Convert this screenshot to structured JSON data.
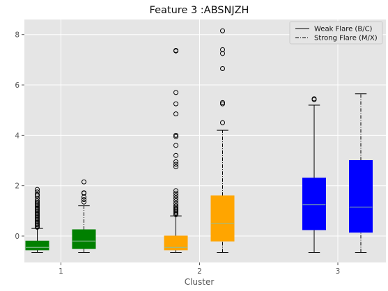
{
  "chart_data": {
    "type": "box",
    "title": "Feature 3 :ABSNJZH",
    "xlabel": "Cluster",
    "ylabel": "",
    "categories": [
      "1",
      "2",
      "3"
    ],
    "yticks": [
      0,
      2,
      4,
      6,
      8
    ],
    "ylim": [
      -1.05,
      8.6
    ],
    "grid": true,
    "legend_position": "top-right",
    "series": [
      {
        "name": "Weak Flare (B/C)",
        "line_style": "solid",
        "boxes": [
          {
            "cluster": "1",
            "color": "#008000",
            "whisker_low": -0.65,
            "q1": -0.55,
            "median": -0.45,
            "q3": -0.2,
            "whisker_high": 0.3,
            "outliers": [
              0.35,
              0.4,
              0.45,
              0.5,
              0.55,
              0.6,
              0.65,
              0.7,
              0.75,
              0.8,
              0.85,
              0.9,
              0.95,
              1.0,
              1.05,
              1.1,
              1.15,
              1.2,
              1.25,
              1.3,
              1.35,
              1.4,
              1.5,
              1.6,
              1.65,
              1.75,
              1.85
            ]
          },
          {
            "cluster": "2",
            "color": "#ffa500",
            "whisker_low": -0.65,
            "q1": -0.55,
            "median": -0.45,
            "q3": 0.0,
            "whisker_high": 0.8,
            "outliers": [
              0.85,
              0.9,
              0.95,
              1.0,
              1.05,
              1.1,
              1.15,
              1.2,
              1.3,
              1.4,
              1.5,
              1.6,
              1.7,
              1.8,
              2.75,
              2.85,
              2.95,
              3.2,
              3.6,
              3.95,
              4.0,
              4.85,
              5.25,
              5.7,
              7.35,
              7.37
            ]
          },
          {
            "cluster": "3",
            "color": "#0000ff",
            "whisker_low": -0.65,
            "q1": 0.25,
            "median": 1.25,
            "q3": 2.3,
            "whisker_high": 5.2,
            "outliers": [
              5.42,
              5.45
            ]
          }
        ]
      },
      {
        "name": "Strong Flare (M/X)",
        "line_style": "dashdot",
        "boxes": [
          {
            "cluster": "1",
            "color": "#008000",
            "whisker_low": -0.65,
            "q1": -0.5,
            "median": -0.2,
            "q3": 0.25,
            "whisker_high": 1.2,
            "outliers": [
              1.35,
              1.45,
              1.55,
              1.7,
              1.72,
              2.15
            ]
          },
          {
            "cluster": "2",
            "color": "#ffa500",
            "whisker_low": -0.65,
            "q1": -0.2,
            "median": 0.5,
            "q3": 1.6,
            "whisker_high": 4.2,
            "outliers": [
              4.5,
              5.25,
              5.3,
              6.65,
              7.25,
              7.4,
              8.15
            ]
          },
          {
            "cluster": "3",
            "color": "#0000ff",
            "whisker_low": -0.65,
            "q1": 0.15,
            "median": 1.15,
            "q3": 3.0,
            "whisker_high": 5.65,
            "outliers": []
          }
        ]
      }
    ]
  }
}
